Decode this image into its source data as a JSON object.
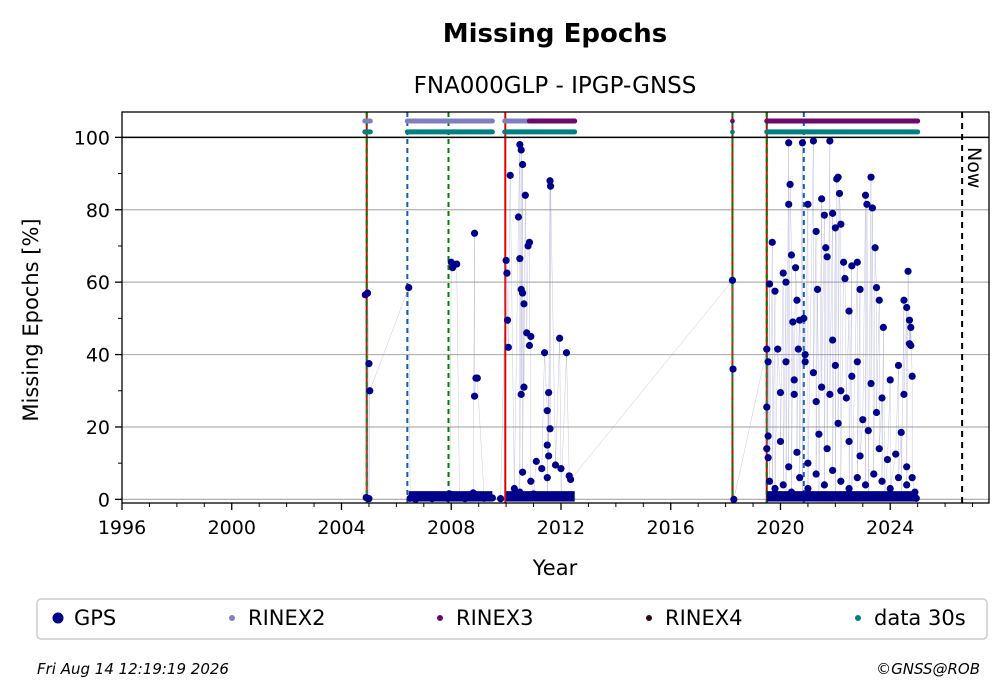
{
  "chart_data": {
    "type": "scatter",
    "title": "Missing Epochs",
    "subtitle": "FNA000GLP - IPGP-GNSS",
    "xlabel": "Year",
    "ylabel": "Missing Epochs [%]",
    "xlim": [
      1996,
      2027.6
    ],
    "ylim": [
      -1,
      107
    ],
    "x_ticks": [
      "1996",
      "2000",
      "2004",
      "2008",
      "2012",
      "2016",
      "2020",
      "2024"
    ],
    "y_ticks": [
      "0",
      "20",
      "40",
      "60",
      "80",
      "100"
    ],
    "grid": "y",
    "legend_position": "bottom",
    "now_label": "Now",
    "now_year": 2026.62,
    "reference_line_y": 100,
    "series": [
      {
        "name": "GPS",
        "color": "#00008b",
        "marker": "large-dot",
        "points": [
          [
            2004.87,
            56.5
          ],
          [
            2004.95,
            57
          ],
          [
            2005.0,
            37.5
          ],
          [
            2005.03,
            30
          ],
          [
            2004.9,
            0.5
          ],
          [
            2005.0,
            0.2
          ],
          [
            2006.45,
            58.5
          ],
          [
            2006.5,
            0.3
          ],
          [
            2006.7,
            0
          ],
          [
            2007.0,
            0.4
          ],
          [
            2007.3,
            0.2
          ],
          [
            2007.6,
            0.6
          ],
          [
            2007.85,
            0.3
          ],
          [
            2008.0,
            65.5
          ],
          [
            2008.05,
            64
          ],
          [
            2008.2,
            65
          ],
          [
            2007.95,
            1.5
          ],
          [
            2008.3,
            0.5
          ],
          [
            2008.5,
            0.2
          ],
          [
            2008.85,
            73.5
          ],
          [
            2008.85,
            28.5
          ],
          [
            2008.9,
            33.5
          ],
          [
            2008.95,
            33.5
          ],
          [
            2008.8,
            1.8
          ],
          [
            2009.2,
            0.3
          ],
          [
            2009.5,
            0.4
          ],
          [
            2009.8,
            0.2
          ],
          [
            2010.0,
            66
          ],
          [
            2010.03,
            62.5
          ],
          [
            2010.05,
            49.5
          ],
          [
            2010.08,
            42
          ],
          [
            2010.15,
            89.5
          ],
          [
            2010.5,
            98
          ],
          [
            2010.55,
            96.5
          ],
          [
            2010.6,
            92.5
          ],
          [
            2010.45,
            78
          ],
          [
            2010.5,
            66.5
          ],
          [
            2010.7,
            84
          ],
          [
            2010.8,
            70
          ],
          [
            2010.85,
            71
          ],
          [
            2010.55,
            58
          ],
          [
            2010.6,
            57
          ],
          [
            2010.65,
            54
          ],
          [
            2010.75,
            46
          ],
          [
            2010.55,
            29
          ],
          [
            2010.65,
            31
          ],
          [
            2010.85,
            42.5
          ],
          [
            2010.9,
            45
          ],
          [
            2011.4,
            40.5
          ],
          [
            2011.6,
            88
          ],
          [
            2011.62,
            86.5
          ],
          [
            2011.55,
            29.5
          ],
          [
            2011.5,
            24.5
          ],
          [
            2011.6,
            19.5
          ],
          [
            2011.5,
            15
          ],
          [
            2011.55,
            12
          ],
          [
            2011.95,
            44.5
          ],
          [
            2012.2,
            40.5
          ],
          [
            2010.3,
            3
          ],
          [
            2010.6,
            7.5
          ],
          [
            2010.9,
            5
          ],
          [
            2011.1,
            10.5
          ],
          [
            2011.3,
            8.5
          ],
          [
            2011.5,
            6
          ],
          [
            2011.8,
            9.5
          ],
          [
            2012.0,
            8.5
          ],
          [
            2012.3,
            6.5
          ],
          [
            2012.35,
            5.5
          ],
          [
            2010.5,
            2
          ],
          [
            2011.0,
            1.5
          ],
          [
            2011.5,
            1
          ],
          [
            2012.0,
            0.8
          ],
          [
            2018.25,
            60.5
          ],
          [
            2018.27,
            36
          ],
          [
            2018.3,
            0
          ],
          [
            2019.5,
            41.5
          ],
          [
            2019.55,
            38
          ],
          [
            2019.5,
            25.5
          ],
          [
            2019.55,
            17.5
          ],
          [
            2019.5,
            14
          ],
          [
            2019.55,
            11.5
          ],
          [
            2019.6,
            59.5
          ],
          [
            2019.7,
            71
          ],
          [
            2019.8,
            57.5
          ],
          [
            2019.9,
            41.5
          ],
          [
            2020.0,
            29.5
          ],
          [
            2020.1,
            62.5
          ],
          [
            2020.2,
            60
          ],
          [
            2020.3,
            98.5
          ],
          [
            2020.35,
            87
          ],
          [
            2020.3,
            81.5
          ],
          [
            2020.4,
            67.5
          ],
          [
            2020.45,
            49
          ],
          [
            2020.5,
            29
          ],
          [
            2020.55,
            64
          ],
          [
            2020.6,
            55
          ],
          [
            2020.65,
            41.5
          ],
          [
            2020.7,
            49.5
          ],
          [
            2020.8,
            98.5
          ],
          [
            2020.85,
            50
          ],
          [
            2020.9,
            38
          ],
          [
            2021.0,
            81.5
          ],
          [
            2021.2,
            99
          ],
          [
            2021.3,
            74
          ],
          [
            2021.35,
            58
          ],
          [
            2021.5,
            83
          ],
          [
            2021.6,
            78.5
          ],
          [
            2021.65,
            69.5
          ],
          [
            2021.7,
            67
          ],
          [
            2021.8,
            99
          ],
          [
            2021.9,
            79
          ],
          [
            2022.0,
            75
          ],
          [
            2022.05,
            88.5
          ],
          [
            2022.1,
            89
          ],
          [
            2022.15,
            84.5
          ],
          [
            2022.2,
            76
          ],
          [
            2022.3,
            65.5
          ],
          [
            2022.35,
            61
          ],
          [
            2022.5,
            52
          ],
          [
            2022.6,
            64.5
          ],
          [
            2022.8,
            65.5
          ],
          [
            2022.9,
            58
          ],
          [
            2023.1,
            84
          ],
          [
            2023.15,
            81.5
          ],
          [
            2023.3,
            89
          ],
          [
            2023.35,
            80.5
          ],
          [
            2023.45,
            69.5
          ],
          [
            2023.5,
            58.5
          ],
          [
            2023.6,
            55
          ],
          [
            2023.75,
            47.5
          ],
          [
            2024.5,
            55
          ],
          [
            2024.6,
            53
          ],
          [
            2024.65,
            63
          ],
          [
            2024.7,
            43
          ],
          [
            2024.75,
            42.5
          ],
          [
            2024.8,
            34
          ],
          [
            2024.7,
            49.5
          ],
          [
            2024.75,
            47.5
          ],
          [
            2020.2,
            38
          ],
          [
            2020.5,
            33
          ],
          [
            2020.9,
            40
          ],
          [
            2021.2,
            35
          ],
          [
            2021.3,
            27
          ],
          [
            2021.5,
            31
          ],
          [
            2021.8,
            29
          ],
          [
            2021.9,
            44
          ],
          [
            2022.0,
            37
          ],
          [
            2022.2,
            30
          ],
          [
            2022.4,
            28
          ],
          [
            2022.6,
            34
          ],
          [
            2022.8,
            38
          ],
          [
            2023.0,
            22
          ],
          [
            2023.3,
            32
          ],
          [
            2023.5,
            24
          ],
          [
            2023.7,
            28
          ],
          [
            2024.0,
            33
          ],
          [
            2024.3,
            37
          ],
          [
            2024.5,
            29
          ],
          [
            2024.2,
            12.5
          ],
          [
            2024.4,
            18.5
          ],
          [
            2024.6,
            9
          ],
          [
            2024.8,
            6
          ],
          [
            2020.0,
            16
          ],
          [
            2020.3,
            9
          ],
          [
            2020.6,
            13
          ],
          [
            2021.0,
            10
          ],
          [
            2021.4,
            18
          ],
          [
            2021.7,
            14
          ],
          [
            2022.1,
            21
          ],
          [
            2022.5,
            16
          ],
          [
            2022.9,
            12
          ],
          [
            2023.2,
            19
          ],
          [
            2023.6,
            14
          ],
          [
            2023.9,
            11
          ],
          [
            2019.6,
            5
          ],
          [
            2019.8,
            3
          ],
          [
            2020.1,
            4
          ],
          [
            2020.4,
            2
          ],
          [
            2020.7,
            6
          ],
          [
            2021.0,
            3
          ],
          [
            2021.3,
            7
          ],
          [
            2021.6,
            4
          ],
          [
            2021.9,
            8
          ],
          [
            2022.2,
            5
          ],
          [
            2022.5,
            3
          ],
          [
            2022.8,
            6
          ],
          [
            2023.1,
            4
          ],
          [
            2023.4,
            7
          ],
          [
            2023.7,
            5
          ],
          [
            2024.0,
            3
          ],
          [
            2024.3,
            6
          ],
          [
            2024.6,
            4
          ],
          [
            2024.9,
            2
          ],
          [
            2019.7,
            0.5
          ],
          [
            2020.2,
            0.8
          ],
          [
            2020.8,
            0.4
          ],
          [
            2021.4,
            1
          ],
          [
            2022.0,
            0.6
          ],
          [
            2022.6,
            1.2
          ],
          [
            2023.2,
            0.5
          ],
          [
            2023.8,
            0.9
          ],
          [
            2024.4,
            0.7
          ],
          [
            2024.95,
            0.3
          ]
        ]
      },
      {
        "name": "RINEX2",
        "color": "#8080c0",
        "marker": "small-dot",
        "ranges": [
          [
            2004.85,
            2005.05
          ],
          [
            2006.4,
            2009.5
          ],
          [
            2009.95,
            2010.95
          ]
        ]
      },
      {
        "name": "RINEX3",
        "color": "#6b0a6b",
        "marker": "small-dot",
        "ranges": [
          [
            2010.85,
            2012.5
          ],
          [
            2018.25,
            2018.28
          ],
          [
            2019.5,
            2025.0
          ]
        ]
      },
      {
        "name": "RINEX4",
        "color": "#2a0a1a",
        "marker": "small-dot",
        "ranges": []
      },
      {
        "name": "data 30s",
        "color": "#008080",
        "marker": "small-dot",
        "ranges": [
          [
            2004.85,
            2005.05
          ],
          [
            2006.4,
            2009.5
          ],
          [
            2009.95,
            2012.5
          ],
          [
            2018.25,
            2018.28
          ],
          [
            2019.5,
            2025.0
          ]
        ]
      }
    ],
    "event_lines": [
      {
        "x": 2004.92,
        "kind": "red-solid"
      },
      {
        "x": 2004.92,
        "kind": "green-dashed"
      },
      {
        "x": 2006.4,
        "kind": "blue-dashed"
      },
      {
        "x": 2007.9,
        "kind": "green-dashed"
      },
      {
        "x": 2009.97,
        "kind": "red-solid"
      },
      {
        "x": 2018.25,
        "kind": "red-solid"
      },
      {
        "x": 2018.25,
        "kind": "green-dashed"
      },
      {
        "x": 2019.5,
        "kind": "red-solid"
      },
      {
        "x": 2019.5,
        "kind": "green-dashed"
      },
      {
        "x": 2020.85,
        "kind": "blue-dashed"
      }
    ]
  },
  "footer": {
    "timestamp": "Fri Aug 14 12:19:19 2026",
    "copyright": "©GNSS@ROB"
  }
}
